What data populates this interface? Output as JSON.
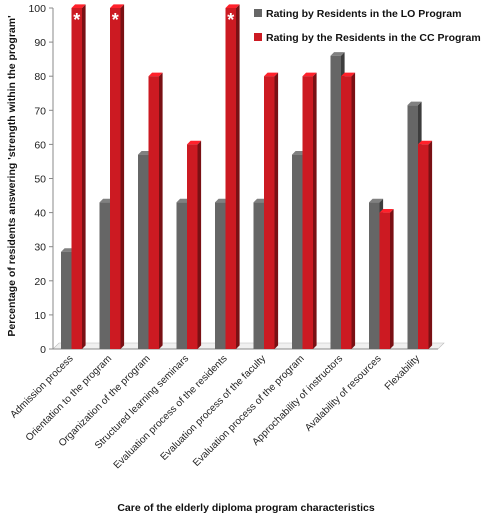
{
  "chart_data": {
    "type": "bar",
    "categories": [
      "Admission process",
      "Orientation to the program",
      "Organization of the program",
      "Structured learning seminars",
      "Evaluation process of the residents",
      "Evaluation process of the faculty",
      "Evaluation process of the program",
      "Approchability of instructors",
      "Avalability of resources",
      "Flexability"
    ],
    "series": [
      {
        "name": "Rating by Residents in the LO Program",
        "color": "#666666",
        "values": [
          28.5,
          43,
          57,
          43,
          43,
          43,
          57,
          86,
          43,
          71.5
        ]
      },
      {
        "name": "Rating by the Residents in the CC Program",
        "color": "#cc1a22",
        "values": [
          100,
          100,
          80,
          60,
          100,
          80,
          80,
          80,
          40,
          60
        ]
      }
    ],
    "annotations": [
      {
        "category": "Admission process",
        "series": 1,
        "text": "*"
      },
      {
        "category": "Orientation to the program",
        "series": 1,
        "text": "*"
      },
      {
        "category": "Evaluation process of the residents",
        "series": 1,
        "text": "*"
      }
    ],
    "xlabel": "Care of the elderly diploma  program characteristics",
    "ylabel": "Percentage of residents answering 'strength within the program'",
    "ylim": [
      0,
      100
    ],
    "yticks": [
      0,
      10,
      20,
      30,
      40,
      50,
      60,
      70,
      80,
      90,
      100
    ],
    "legend_position": "top-right",
    "grid": false
  }
}
